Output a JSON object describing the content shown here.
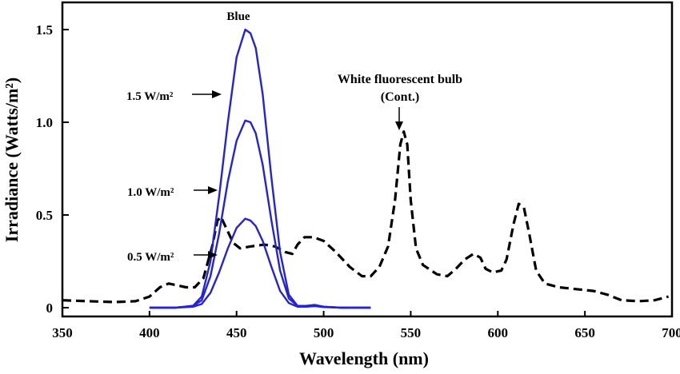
{
  "chart_data": {
    "type": "line",
    "title": "",
    "xlabel": "Wavelength (nm)",
    "ylabel": "Irradiance (Watts/m²)",
    "xlim": [
      350,
      700
    ],
    "ylim": [
      0,
      1.6
    ],
    "x_ticks": [
      "350",
      "400",
      "450",
      "500",
      "550",
      "600",
      "650",
      "700"
    ],
    "y_ticks": [
      {
        "value": 0,
        "label": "0"
      },
      {
        "value": 0.5,
        "label": "0.5"
      },
      {
        "value": 1.0,
        "label": "1.0"
      },
      {
        "value": 1.5,
        "label": "1.5"
      }
    ],
    "grid": false,
    "colors": {
      "blue_series": "#2222dd",
      "fluorescent": "#000000"
    },
    "annotations": {
      "blue": "Blue",
      "fluorescent_line1": "White fluorescent bulb",
      "fluorescent_line2": "(Cont.)",
      "level_1_5": "1.5 W/m²",
      "level_1_0": "1.0 W/m²",
      "level_0_5": "0.5 W/m²"
    },
    "series": [
      {
        "style": "dashed",
        "color": "#000000",
        "points": [
          [
            350,
            0.04
          ],
          [
            365,
            0.035
          ],
          [
            380,
            0.03
          ],
          [
            392,
            0.035
          ],
          [
            400,
            0.06
          ],
          [
            406,
            0.11
          ],
          [
            411,
            0.13
          ],
          [
            416,
            0.12
          ],
          [
            421,
            0.11
          ],
          [
            426,
            0.11
          ],
          [
            431,
            0.16
          ],
          [
            436,
            0.33
          ],
          [
            439,
            0.47
          ],
          [
            441,
            0.49
          ],
          [
            444,
            0.43
          ],
          [
            448,
            0.35
          ],
          [
            452,
            0.32
          ],
          [
            458,
            0.33
          ],
          [
            466,
            0.34
          ],
          [
            472,
            0.33
          ],
          [
            478,
            0.3
          ],
          [
            482,
            0.29
          ],
          [
            485,
            0.34
          ],
          [
            489,
            0.38
          ],
          [
            494,
            0.38
          ],
          [
            500,
            0.36
          ],
          [
            507,
            0.3
          ],
          [
            515,
            0.22
          ],
          [
            522,
            0.17
          ],
          [
            527,
            0.17
          ],
          [
            532,
            0.22
          ],
          [
            537,
            0.33
          ],
          [
            541,
            0.58
          ],
          [
            544,
            0.88
          ],
          [
            546,
            0.95
          ],
          [
            548,
            0.88
          ],
          [
            550,
            0.58
          ],
          [
            553,
            0.32
          ],
          [
            557,
            0.23
          ],
          [
            565,
            0.18
          ],
          [
            571,
            0.17
          ],
          [
            576,
            0.21
          ],
          [
            581,
            0.26
          ],
          [
            586,
            0.29
          ],
          [
            590,
            0.27
          ],
          [
            593,
            0.21
          ],
          [
            597,
            0.19
          ],
          [
            602,
            0.2
          ],
          [
            605,
            0.26
          ],
          [
            609,
            0.45
          ],
          [
            612,
            0.56
          ],
          [
            615,
            0.54
          ],
          [
            618,
            0.4
          ],
          [
            622,
            0.2
          ],
          [
            627,
            0.13
          ],
          [
            635,
            0.11
          ],
          [
            645,
            0.1
          ],
          [
            655,
            0.09
          ],
          [
            663,
            0.07
          ],
          [
            671,
            0.04
          ],
          [
            681,
            0.035
          ],
          [
            690,
            0.04
          ],
          [
            698,
            0.06
          ]
        ]
      },
      {
        "name": "1.5 W/m²",
        "style": "solid",
        "color": "#2222dd",
        "points": [
          [
            400,
            0
          ],
          [
            415,
            0
          ],
          [
            425,
            0.01
          ],
          [
            430,
            0.06
          ],
          [
            435,
            0.25
          ],
          [
            440,
            0.6
          ],
          [
            445,
            1.0
          ],
          [
            450,
            1.35
          ],
          [
            455,
            1.5
          ],
          [
            458,
            1.48
          ],
          [
            461,
            1.4
          ],
          [
            465,
            1.15
          ],
          [
            470,
            0.7
          ],
          [
            475,
            0.3
          ],
          [
            480,
            0.07
          ],
          [
            485,
            0.01
          ],
          [
            490,
            0.01
          ],
          [
            495,
            0.015
          ],
          [
            500,
            0.005
          ],
          [
            510,
            0
          ],
          [
            527,
            0
          ]
        ]
      },
      {
        "name": "1.0 W/m²",
        "style": "solid",
        "color": "#2222dd",
        "points": [
          [
            400,
            0
          ],
          [
            415,
            0
          ],
          [
            425,
            0.01
          ],
          [
            430,
            0.04
          ],
          [
            435,
            0.17
          ],
          [
            440,
            0.4
          ],
          [
            445,
            0.68
          ],
          [
            450,
            0.9
          ],
          [
            455,
            1.01
          ],
          [
            458,
            1.0
          ],
          [
            461,
            0.94
          ],
          [
            465,
            0.77
          ],
          [
            470,
            0.47
          ],
          [
            475,
            0.2
          ],
          [
            480,
            0.05
          ],
          [
            485,
            0.01
          ],
          [
            490,
            0.01
          ],
          [
            495,
            0.012
          ],
          [
            500,
            0.005
          ],
          [
            510,
            0
          ],
          [
            527,
            0
          ]
        ]
      },
      {
        "name": "0.5 W/m²",
        "style": "solid",
        "color": "#2222dd",
        "points": [
          [
            400,
            0
          ],
          [
            415,
            0
          ],
          [
            425,
            0.005
          ],
          [
            430,
            0.02
          ],
          [
            435,
            0.08
          ],
          [
            440,
            0.19
          ],
          [
            445,
            0.32
          ],
          [
            450,
            0.43
          ],
          [
            455,
            0.48
          ],
          [
            458,
            0.47
          ],
          [
            461,
            0.44
          ],
          [
            465,
            0.36
          ],
          [
            470,
            0.22
          ],
          [
            475,
            0.09
          ],
          [
            480,
            0.025
          ],
          [
            485,
            0.005
          ],
          [
            490,
            0.005
          ],
          [
            495,
            0.008
          ],
          [
            500,
            0.003
          ],
          [
            510,
            0
          ],
          [
            527,
            0
          ]
        ]
      }
    ]
  }
}
